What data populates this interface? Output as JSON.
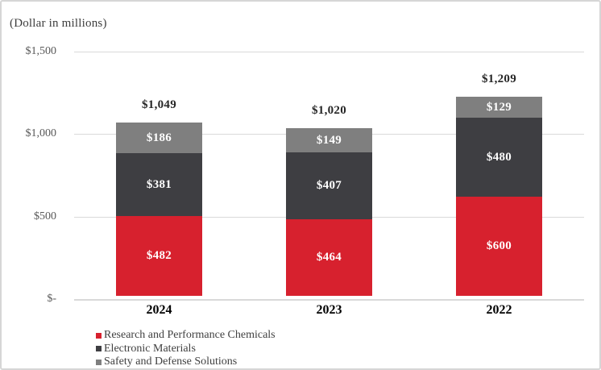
{
  "chart_data": {
    "type": "bar",
    "variant": "stacked",
    "title": "(Dollar in millions)",
    "categories": [
      "2024",
      "2023",
      "2022"
    ],
    "series": [
      {
        "name": "Research and Performance Chemicals",
        "color": "#d7212e",
        "values": [
          482,
          464,
          600
        ]
      },
      {
        "name": "Electronic Materials",
        "color": "#3e3e42",
        "values": [
          381,
          407,
          480
        ]
      },
      {
        "name": "Safety and Defense Solutions",
        "color": "#7f7f7f",
        "values": [
          186,
          149,
          129
        ]
      }
    ],
    "totals": [
      1049,
      1020,
      1209
    ],
    "total_labels": [
      "$1,049",
      "$1,020",
      "$1,209"
    ],
    "segment_labels": [
      [
        "$482",
        "$381",
        "$186"
      ],
      [
        "$464",
        "$407",
        "$149"
      ],
      [
        "$600",
        "$480",
        "$129"
      ]
    ],
    "y_axis": {
      "min": 0,
      "max": 1500,
      "ticks": [
        {
          "value": 1500,
          "label": "$1,500"
        },
        {
          "value": 1000,
          "label": "$1,000"
        },
        {
          "value": 500,
          "label": "$500"
        },
        {
          "value": 0,
          "label": "$-"
        }
      ]
    },
    "grid": true,
    "legend_position": "bottom-left",
    "colors": {
      "gridline": "#d9d9d9",
      "y_tick_text": "#595959",
      "total_label_text": "#262626",
      "x_label_text": "#000000",
      "legend_text": "#404040",
      "segment_label_text": "#ffffff"
    }
  }
}
